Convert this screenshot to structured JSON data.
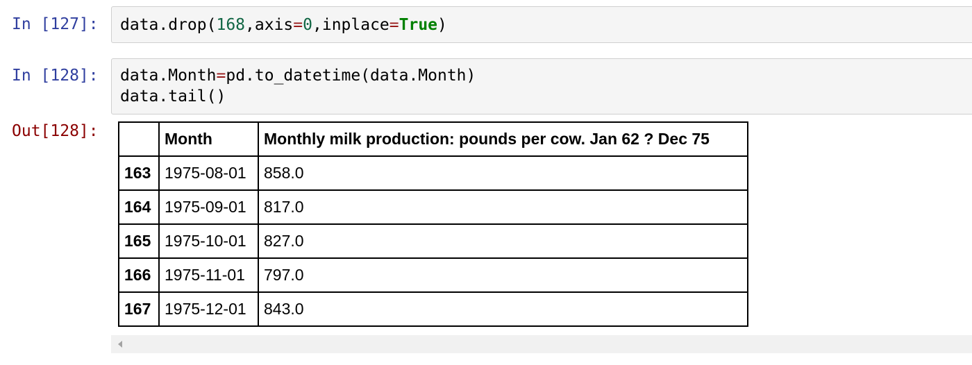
{
  "cells": [
    {
      "prompt": "In [127]:",
      "code_lines": [
        [
          {
            "text": "data.drop(",
            "cls": ""
          },
          {
            "text": "168",
            "cls": "tok-num"
          },
          {
            "text": ",axis",
            "cls": ""
          },
          {
            "text": "=",
            "cls": "tok-op"
          },
          {
            "text": "0",
            "cls": "tok-num"
          },
          {
            "text": ",inplace",
            "cls": ""
          },
          {
            "text": "=",
            "cls": "tok-op"
          },
          {
            "text": "True",
            "cls": "tok-kw"
          },
          {
            "text": ")",
            "cls": ""
          }
        ]
      ]
    },
    {
      "prompt": "In [128]:",
      "code_lines": [
        [
          {
            "text": "data.Month",
            "cls": ""
          },
          {
            "text": "=",
            "cls": "tok-op"
          },
          {
            "text": "pd.to_datetime(data.Month)",
            "cls": ""
          }
        ],
        [
          {
            "text": "data.tail()",
            "cls": ""
          }
        ]
      ],
      "output": {
        "prompt": "Out[128]:",
        "table": {
          "columns": [
            "",
            "Month",
            "Monthly milk production: pounds per cow. Jan 62 ? Dec 75"
          ],
          "rows": [
            {
              "index": "163",
              "month": "1975-08-01",
              "value": "858.0"
            },
            {
              "index": "164",
              "month": "1975-09-01",
              "value": "817.0"
            },
            {
              "index": "165",
              "month": "1975-10-01",
              "value": "827.0"
            },
            {
              "index": "166",
              "month": "1975-11-01",
              "value": "797.0"
            },
            {
              "index": "167",
              "month": "1975-12-01",
              "value": "843.0"
            }
          ]
        }
      }
    }
  ],
  "colors": {
    "prompt_in": "#303f9f",
    "prompt_out": "#8b0000",
    "input_background": "#f5f5f5",
    "keyword": "#008000",
    "number": "#116644",
    "operator": "#981a1a"
  },
  "icons": {
    "scroll_left": "scroll-left-arrow-icon"
  }
}
